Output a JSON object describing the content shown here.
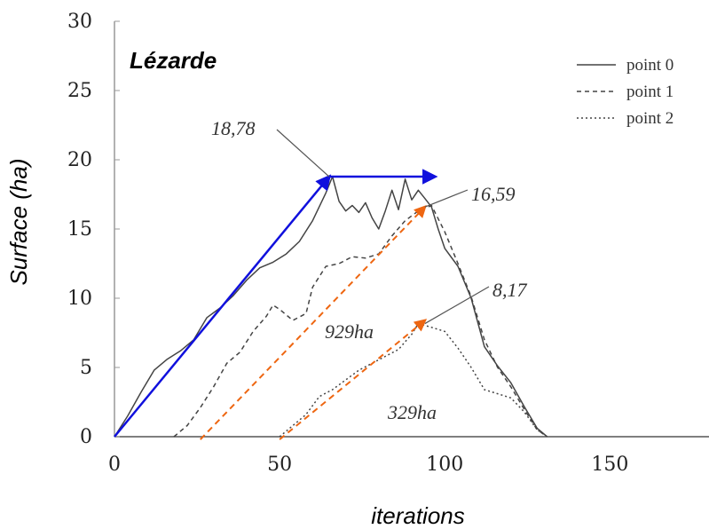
{
  "chart_data": {
    "type": "line",
    "title": "Lézarde",
    "xlabel": "iterations",
    "ylabel": "Surface (ha)",
    "xlim": [
      0,
      180
    ],
    "ylim": [
      0,
      30
    ],
    "xticks": [
      0,
      50,
      100,
      150
    ],
    "yticks": [
      0,
      5,
      10,
      15,
      20,
      25,
      30
    ],
    "grid": false,
    "legend": {
      "placement": "top-right",
      "entries": [
        {
          "label": "point 0",
          "style": "solid"
        },
        {
          "label": "point 1",
          "style": "dashed"
        },
        {
          "label": "point 2",
          "style": "dotted"
        }
      ]
    },
    "series": [
      {
        "name": "point 0",
        "style": "solid",
        "color": "#444444",
        "x": [
          0,
          4,
          8,
          12,
          16,
          20,
          24,
          28,
          32,
          36,
          40,
          44,
          48,
          52,
          56,
          60,
          64,
          66,
          68,
          70,
          72,
          74,
          76,
          78,
          80,
          82,
          84,
          86,
          88,
          90,
          92,
          94,
          96,
          98,
          100,
          104,
          108,
          112,
          116,
          120,
          124,
          128,
          131
        ],
        "y": [
          0,
          1.5,
          3.2,
          4.8,
          5.6,
          6.2,
          7.0,
          8.6,
          9.3,
          10.2,
          11.3,
          12.2,
          12.6,
          13.2,
          14.1,
          15.6,
          17.6,
          18.78,
          17.0,
          16.3,
          16.7,
          16.2,
          16.9,
          15.8,
          15.0,
          16.3,
          17.8,
          16.4,
          18.6,
          17.1,
          17.8,
          17.2,
          16.59,
          15.0,
          13.6,
          12.3,
          10.0,
          6.5,
          5.1,
          3.9,
          2.2,
          0.6,
          0
        ]
      },
      {
        "name": "point 1",
        "style": "dashed",
        "color": "#444444",
        "x": [
          18,
          22,
          26,
          30,
          34,
          38,
          42,
          46,
          48,
          50,
          54,
          58,
          60,
          64,
          68,
          72,
          76,
          80,
          84,
          88,
          92,
          96,
          100,
          104,
          108,
          112,
          116,
          120,
          124,
          128,
          131
        ],
        "y": [
          0,
          0.8,
          2.1,
          3.6,
          5.3,
          6.1,
          7.6,
          8.7,
          9.5,
          9.2,
          8.4,
          8.9,
          10.8,
          12.3,
          12.5,
          13.0,
          12.9,
          13.2,
          14.5,
          15.6,
          16.3,
          16.7,
          14.8,
          12.5,
          10.1,
          7.0,
          5.0,
          3.6,
          2.0,
          0.5,
          0
        ]
      },
      {
        "name": "point 2",
        "style": "dotted",
        "color": "#444444",
        "x": [
          50,
          54,
          58,
          62,
          66,
          70,
          74,
          78,
          82,
          86,
          90,
          92,
          96,
          100,
          104,
          108,
          112,
          116,
          120,
          124,
          128,
          131
        ],
        "y": [
          0,
          0.8,
          1.6,
          2.9,
          3.4,
          4.1,
          4.8,
          5.3,
          5.8,
          6.3,
          7.4,
          8.17,
          7.9,
          7.6,
          6.4,
          5.0,
          3.4,
          3.1,
          2.8,
          1.8,
          0.5,
          0
        ]
      }
    ],
    "overlays": [
      {
        "name": "rise-arrow",
        "color": "#1010dd",
        "style": "solid",
        "from": [
          0,
          0
        ],
        "to": [
          65,
          18.78
        ]
      },
      {
        "name": "plateau-arrow",
        "color": "#1010dd",
        "style": "solid",
        "from": [
          65,
          18.78
        ],
        "to": [
          97,
          18.78
        ]
      },
      {
        "name": "point1-arrow",
        "color": "#ee6611",
        "style": "dashed",
        "from": [
          26,
          -0.2
        ],
        "to": [
          94,
          16.6
        ]
      },
      {
        "name": "point2-arrow",
        "color": "#ee6611",
        "style": "dashed",
        "from": [
          50,
          -0.2
        ],
        "to": [
          94,
          8.4
        ]
      }
    ],
    "annotations": [
      {
        "text": "18,78",
        "target": [
          65,
          18.78
        ]
      },
      {
        "text": "16,59",
        "target": [
          94,
          16.59
        ]
      },
      {
        "text": "8,17",
        "target": [
          94,
          8.17
        ]
      },
      {
        "text": "929ha"
      },
      {
        "text": "329ha"
      }
    ]
  }
}
